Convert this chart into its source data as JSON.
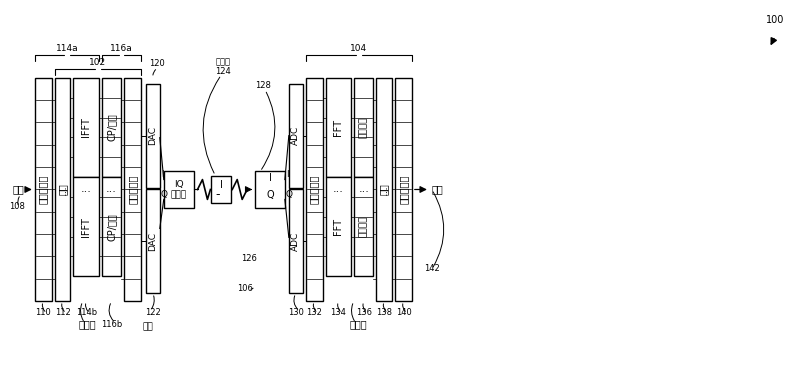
{
  "bg_color": "#ffffff",
  "fig_width": 8.0,
  "fig_height": 3.77,
  "dpi": 100,
  "transmitter_label": "发送器",
  "receiver_label": "接收器",
  "label_100": "100",
  "label_102": "102",
  "label_104": "104",
  "label_108": "108",
  "label_110": "110",
  "label_112": "112",
  "label_114a": "114a",
  "label_114b": "114b",
  "label_116a": "116a",
  "label_116b": "116b",
  "label_120": "120",
  "label_122": "122",
  "label_124": "124",
  "label_126": "126",
  "label_128": "128",
  "label_130": "130",
  "label_132": "132",
  "label_134": "134",
  "label_136": "136",
  "label_138": "138",
  "label_140": "140",
  "label_142": "142",
  "data_in": "数据",
  "data_out": "数据",
  "channel_label": "光信道",
  "laser_label": "激光",
  "serial_to_parallel1": "串行到并行",
  "modulate": "调制",
  "ifft": "IFFT",
  "cp_insert": "CP/延迟",
  "parallel_to_serial1": "并行到串行",
  "dac": "DAC",
  "iq_label_I": "I",
  "iq_label_Q": "Q",
  "iq_mod_label": "IQ\n调制器",
  "adc": "ADC",
  "serial_to_parallel2": "串行到并行",
  "fft": "FFT",
  "equalize": "包数均衡",
  "demod": "解调",
  "parallel_to_serial2": "并行到串行"
}
